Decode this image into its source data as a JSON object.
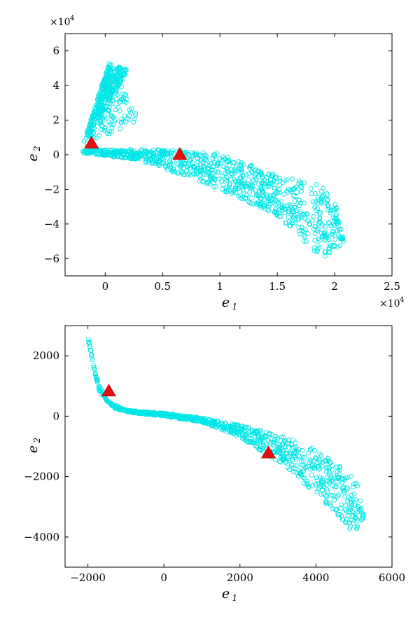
{
  "chart_data": [
    {
      "type": "scatter",
      "xlabel": "e",
      "xlabel_sub": "1",
      "ylabel": "e",
      "ylabel_sub": "2",
      "x_multiplier": "×10",
      "x_multiplier_exp": "4",
      "y_multiplier": "×10",
      "y_multiplier_exp": "4",
      "xlim": [
        -0.35,
        2.5
      ],
      "ylim": [
        -7,
        7
      ],
      "xticks": [
        0,
        0.5,
        1,
        1.5,
        2,
        2.5
      ],
      "xtick_labels": [
        "0",
        "0.5",
        "1",
        "1.5",
        "2",
        "2.5"
      ],
      "yticks": [
        -6,
        -4,
        -2,
        0,
        2,
        4,
        6
      ],
      "ytick_labels": [
        "−6",
        "−4",
        "−2",
        "0",
        "2",
        "4",
        "6"
      ],
      "colors": {
        "points": "#00e6e6",
        "markers": "#e01010"
      },
      "series": [
        {
          "marker": "circle",
          "region": "cloud",
          "shape": "wedge-and-band",
          "wedge": {
            "apex": [
              -0.2,
              0.5
            ],
            "tip_left": [
              0.03,
              5.3
            ],
            "tip_right": [
              0.2,
              4.9
            ],
            "base_right": [
              0.3,
              2.0
            ]
          },
          "band_upper": [
            [
              -0.2,
              0.3
            ],
            [
              0.3,
              0.3
            ],
            [
              0.6,
              0.3
            ],
            [
              1.0,
              0.1
            ],
            [
              1.5,
              -1.2
            ],
            [
              1.9,
              -1.8
            ],
            [
              2.0,
              -2.5
            ],
            [
              2.08,
              -5.0
            ]
          ],
          "band_lower": [
            [
              -0.2,
              0.1
            ],
            [
              0.3,
              -0.3
            ],
            [
              0.6,
              -1.0
            ],
            [
              1.0,
              -2.0
            ],
            [
              1.5,
              -3.5
            ],
            [
              1.8,
              -5.5
            ],
            [
              1.95,
              -6.0
            ],
            [
              2.08,
              -5.0
            ]
          ]
        },
        {
          "marker": "triangle",
          "region": "centers",
          "points": [
            [
              -0.12,
              0.7
            ],
            [
              0.65,
              0.05
            ]
          ]
        }
      ]
    },
    {
      "type": "scatter",
      "xlabel": "e",
      "xlabel_sub": "1",
      "ylabel": "e",
      "ylabel_sub": "2",
      "xlim": [
        -2600,
        6000
      ],
      "ylim": [
        -5000,
        3000
      ],
      "xticks": [
        -2000,
        0,
        2000,
        4000,
        6000
      ],
      "xtick_labels": [
        "−2000",
        "0",
        "2000",
        "4000",
        "6000"
      ],
      "yticks": [
        -4000,
        -2000,
        0,
        2000
      ],
      "ytick_labels": [
        "−4000",
        "−2000",
        "0",
        "2000"
      ],
      "colors": {
        "points": "#00e6e6",
        "markers": "#e01010"
      },
      "series": [
        {
          "marker": "circle",
          "region": "cloud",
          "shape": "curved-band",
          "band_upper": [
            [
              -2000,
              2700
            ],
            [
              -1800,
              1400
            ],
            [
              -1500,
              500
            ],
            [
              -1000,
              200
            ],
            [
              0,
              100
            ],
            [
              1000,
              -50
            ],
            [
              2000,
              -300
            ],
            [
              3000,
              -600
            ],
            [
              4000,
              -1100
            ],
            [
              4800,
              -1800
            ],
            [
              5100,
              -2200
            ],
            [
              5250,
              -3300
            ]
          ],
          "band_lower": [
            [
              -2000,
              2500
            ],
            [
              -1700,
              800
            ],
            [
              -1300,
              250
            ],
            [
              -800,
              100
            ],
            [
              0,
              0
            ],
            [
              1000,
              -200
            ],
            [
              2000,
              -700
            ],
            [
              3000,
              -1500
            ],
            [
              4000,
              -2600
            ],
            [
              4700,
              -3500
            ],
            [
              5100,
              -4000
            ],
            [
              5250,
              -3300
            ]
          ]
        },
        {
          "marker": "triangle",
          "region": "centers",
          "points": [
            [
              -1450,
              850
            ],
            [
              2750,
              -1200
            ]
          ]
        }
      ]
    }
  ]
}
